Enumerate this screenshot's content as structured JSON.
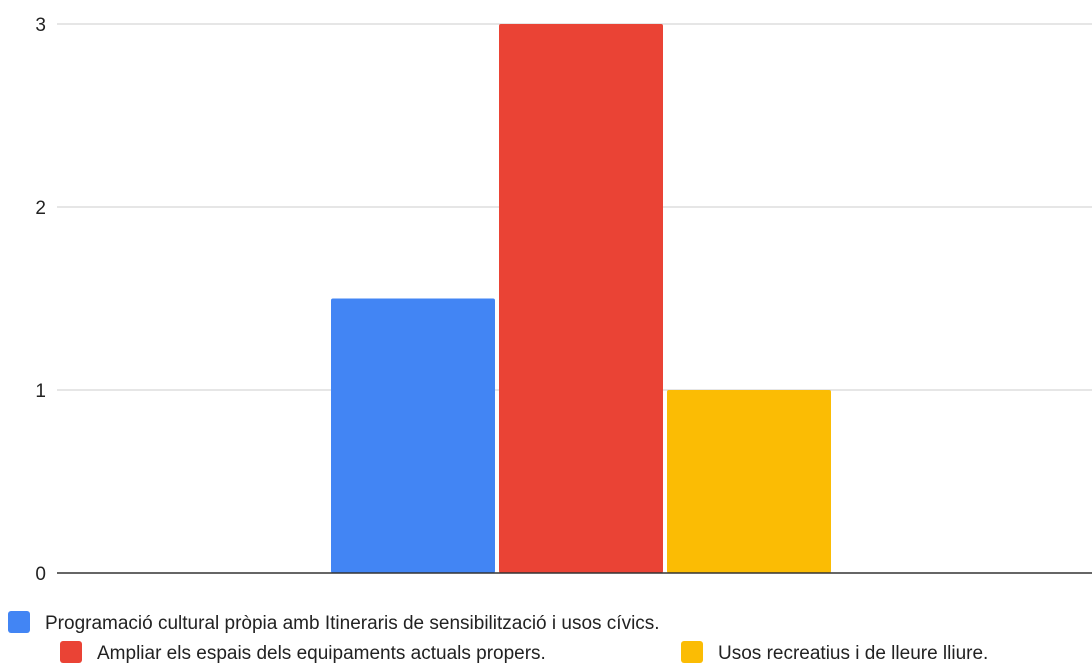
{
  "chart_data": {
    "type": "bar",
    "categories": [
      ""
    ],
    "series": [
      {
        "name": "Programació cultural pròpia amb Itineraris de sensibilització i usos cívics.",
        "values": [
          1.5
        ],
        "color": "#4285f4"
      },
      {
        "name": "Ampliar els espais dels equipaments actuals propers.",
        "values": [
          3
        ],
        "color": "#ea4335"
      },
      {
        "name": "Usos recreatius i de lleure lliure.",
        "values": [
          1
        ],
        "color": "#fbbc04"
      }
    ],
    "ylim": [
      0,
      3
    ],
    "yticks": [
      "0",
      "1",
      "2",
      "3"
    ],
    "grid": true,
    "legend_position": "bottom",
    "title": "",
    "xlabel": "",
    "ylabel": ""
  },
  "colors": {
    "gridline": "#cccccc",
    "baseline": "#333333",
    "text": "#222222"
  }
}
